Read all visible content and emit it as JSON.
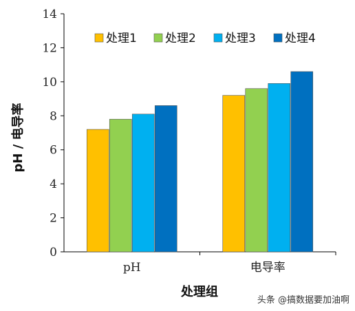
{
  "chart_data": {
    "type": "bar",
    "categories": [
      "pH",
      "电导率"
    ],
    "series": [
      {
        "name": "处理1",
        "values": [
          7.2,
          9.2
        ],
        "color": "#FFC000"
      },
      {
        "name": "处理2",
        "values": [
          7.8,
          9.6
        ],
        "color": "#92D050"
      },
      {
        "name": "处理3",
        "values": [
          8.1,
          9.9
        ],
        "color": "#00B0F0"
      },
      {
        "name": "处理4",
        "values": [
          8.6,
          10.6
        ],
        "color": "#0070C0"
      }
    ],
    "xlabel": "处理组",
    "ylabel": "pH / 电导率",
    "ylim": [
      0,
      14
    ],
    "yticks": [
      0,
      2,
      4,
      6,
      8,
      10,
      12,
      14
    ],
    "grid": false,
    "legend_position": "top"
  },
  "watermark": "头条 @搞数据要加油啊"
}
